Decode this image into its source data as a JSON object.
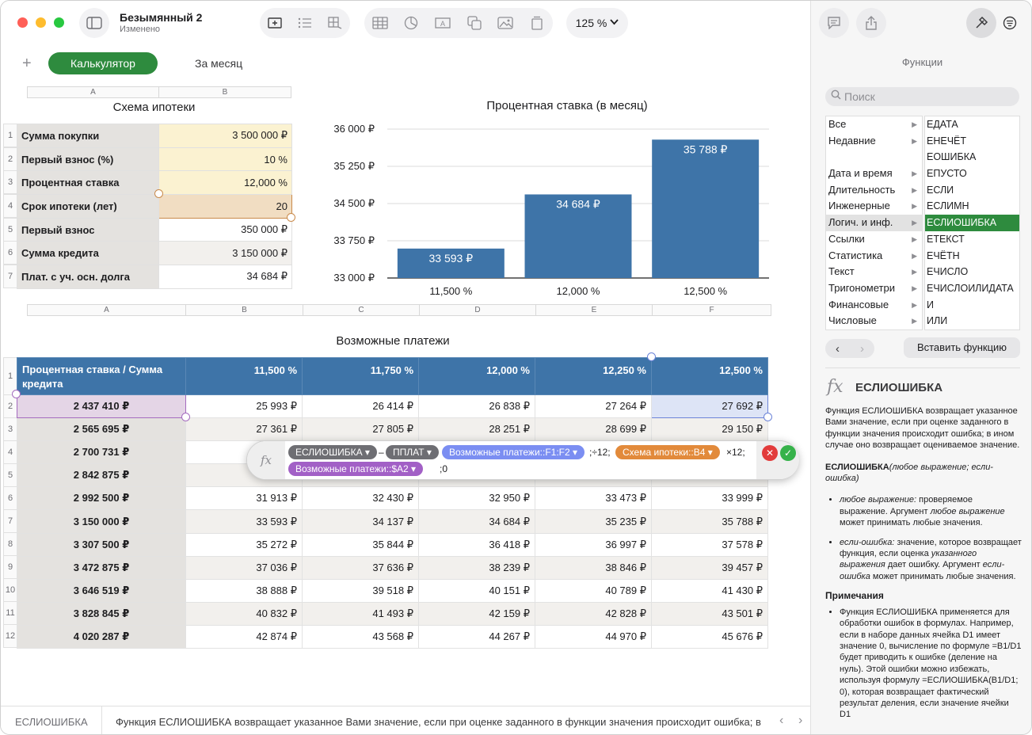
{
  "window": {
    "title": "Безымянный 2",
    "subtitle": "Изменено",
    "zoom": "125 %"
  },
  "tabs": {
    "add": "+",
    "active": "Калькулятор",
    "inactive": "За месяц"
  },
  "table1": {
    "col_a": "A",
    "col_b": "B",
    "title": "Схема ипотеки",
    "rows": [
      {
        "n": "1",
        "label": "Сумма покупки",
        "value": "3 500 000 ₽"
      },
      {
        "n": "2",
        "label": "Первый взнос (%)",
        "value": "10 %"
      },
      {
        "n": "3",
        "label": "Процентная ставка",
        "value": "12,000 %"
      },
      {
        "n": "4",
        "label": "Срок ипотеки (лет)",
        "value": "20"
      },
      {
        "n": "5",
        "label": "Первый взнос",
        "value": "350 000 ₽"
      },
      {
        "n": "6",
        "label": "Сумма кредита",
        "value": "3 150 000 ₽"
      },
      {
        "n": "7",
        "label": "Плат. с уч. осн. долга",
        "value": "34 684 ₽"
      }
    ]
  },
  "chart_data": {
    "type": "bar",
    "title": "Процентная ставка (в месяц)",
    "categories": [
      "11,500 %",
      "12,000 %",
      "12,500 %"
    ],
    "values": [
      33593,
      34684,
      35788
    ],
    "value_labels": [
      "33 593 ₽",
      "34 684 ₽",
      "35 788 ₽"
    ],
    "ylim": [
      33000,
      36000
    ],
    "yticks": [
      33000,
      33750,
      34500,
      35250,
      36000
    ],
    "ytick_labels": [
      "33 000 ₽",
      "33 750 ₽",
      "34 500 ₽",
      "35 250 ₽",
      "36 000 ₽"
    ],
    "bar_color": "#3e74a8",
    "grid": true
  },
  "table2": {
    "cols": [
      "A",
      "B",
      "C",
      "D",
      "E",
      "F"
    ],
    "title": "Возможные платежи",
    "header": [
      "Процентная ставка / Сумма кредита",
      "11,500 %",
      "11,750 %",
      "12,000 %",
      "12,250 %",
      "12,500 %"
    ],
    "rows": [
      {
        "n": "2",
        "cells": [
          "2 437 410 ₽",
          "25 993 ₽",
          "26 414 ₽",
          "26 838 ₽",
          "27 264 ₽",
          "27 692 ₽"
        ]
      },
      {
        "n": "3",
        "cells": [
          "2 565 695 ₽",
          "27 361 ₽",
          "27 805 ₽",
          "28 251 ₽",
          "28 699 ₽",
          "29 150 ₽"
        ]
      },
      {
        "n": "4",
        "cells": [
          "2 700 731 ₽",
          "",
          "",
          "",
          "",
          ""
        ]
      },
      {
        "n": "5",
        "cells": [
          "2 842 875 ₽",
          "",
          "",
          "",
          "",
          ""
        ]
      },
      {
        "n": "6",
        "cells": [
          "2 992 500 ₽",
          "31 913 ₽",
          "32 430 ₽",
          "32 950 ₽",
          "33 473 ₽",
          "33 999 ₽"
        ]
      },
      {
        "n": "7",
        "cells": [
          "3 150 000 ₽",
          "33 593 ₽",
          "34 137 ₽",
          "34 684 ₽",
          "35 235 ₽",
          "35 788 ₽"
        ]
      },
      {
        "n": "8",
        "cells": [
          "3 307 500 ₽",
          "35 272 ₽",
          "35 844 ₽",
          "36 418 ₽",
          "36 997 ₽",
          "37 578 ₽"
        ]
      },
      {
        "n": "9",
        "cells": [
          "3 472 875 ₽",
          "37 036 ₽",
          "37 636 ₽",
          "38 239 ₽",
          "38 846 ₽",
          "39 457 ₽"
        ]
      },
      {
        "n": "10",
        "cells": [
          "3 646 519 ₽",
          "38 888 ₽",
          "39 518 ₽",
          "40 151 ₽",
          "40 789 ₽",
          "41 430 ₽"
        ]
      },
      {
        "n": "11",
        "cells": [
          "3 828 845 ₽",
          "40 832 ₽",
          "41 493 ₽",
          "42 159 ₽",
          "42 828 ₽",
          "43 501 ₽"
        ]
      },
      {
        "n": "12",
        "cells": [
          "4 020 287 ₽",
          "42 874 ₽",
          "43 568 ₽",
          "44 267 ₽",
          "44 970 ₽",
          "45 676 ₽"
        ]
      }
    ]
  },
  "formula": {
    "fx": "fx",
    "fn1": "ЕСЛИОШИБКА ▾",
    "minus": "–",
    "fn2": "ППЛАТ ▾",
    "ref1": "Возможные платежи::F1:F2 ▾",
    "sep1": ";÷12;",
    "ref2": "Схема ипотеки::B4 ▾",
    "sep2": "×12;",
    "ref3": "Возможные платежи::$A2 ▾",
    "tail": ";0",
    "cancel": "✕",
    "accept": "✓"
  },
  "status": {
    "fn": "ЕСЛИОШИБКА",
    "desc": "Функция ЕСЛИОШИБКА возвращает указанное Вами значение, если при оценке заданного в функции значения происходит ошибка; в"
  },
  "sidebar": {
    "title": "Функции",
    "search_placeholder": "Поиск",
    "categories": [
      "Все",
      "Недавние",
      "",
      "Дата и время",
      "Длительность",
      "Инженерные",
      "Логич. и инф.",
      "Ссылки",
      "Статистика",
      "Текст",
      "Тригонометри",
      "Финансовые",
      "Числовые"
    ],
    "functions": [
      "ЕДАТА",
      "ЕНЕЧЁТ",
      "ЕОШИБКА",
      "ЕПУСТО",
      "ЕСЛИ",
      "ЕСЛИМН",
      "ЕСЛИОШИБКА",
      "ЕТЕКСТ",
      "ЕЧЁТН",
      "ЕЧИСЛО",
      "ЕЧИСЛОИЛИДАТА",
      "И",
      "ИЛИ"
    ],
    "insert_button": "Вставить функцию",
    "fn_title": "ЕСЛИОШИБКА",
    "desc": "Функция ЕСЛИОШИБКА возвращает указанное Вами значение, если при оценке заданного в функции значения происходит ошибка; в ином случае оно возвращает оцениваемое значение.",
    "syntax_name": "ЕСЛИОШИБКА",
    "syntax_args": "(любое выражение; если-ошибка)",
    "arg1_name": "любое выражение:",
    "arg1_text": " проверяемое выражение. Аргумент ",
    "arg1_em": "любое выражение",
    "arg1_tail": " может принимать любые значения.",
    "arg2_name": "если-ошибка:",
    "arg2_text": " значение, которое возвращает функция, если оценка ",
    "arg2_em": "указанного выражения",
    "arg2_mid": " дает ошибку. Аргумент ",
    "arg2_em2": "если-ошибка",
    "arg2_tail": " может принимать любые значения.",
    "notes_title": "Примечания",
    "note1": "Функция ЕСЛИОШИБКА применяется для обработки ошибок в формулах. Например, если в наборе данных ячейка D1 имеет значение 0, вычисление по формуле =B1/D1 будет приводить к ошибке (деление на нуль). Этой ошибки можно избежать, используя формулу =ЕСЛИОШИБКА(B1/D1; 0), которая возвращает фактический результат деления, если значение ячейки D1"
  }
}
